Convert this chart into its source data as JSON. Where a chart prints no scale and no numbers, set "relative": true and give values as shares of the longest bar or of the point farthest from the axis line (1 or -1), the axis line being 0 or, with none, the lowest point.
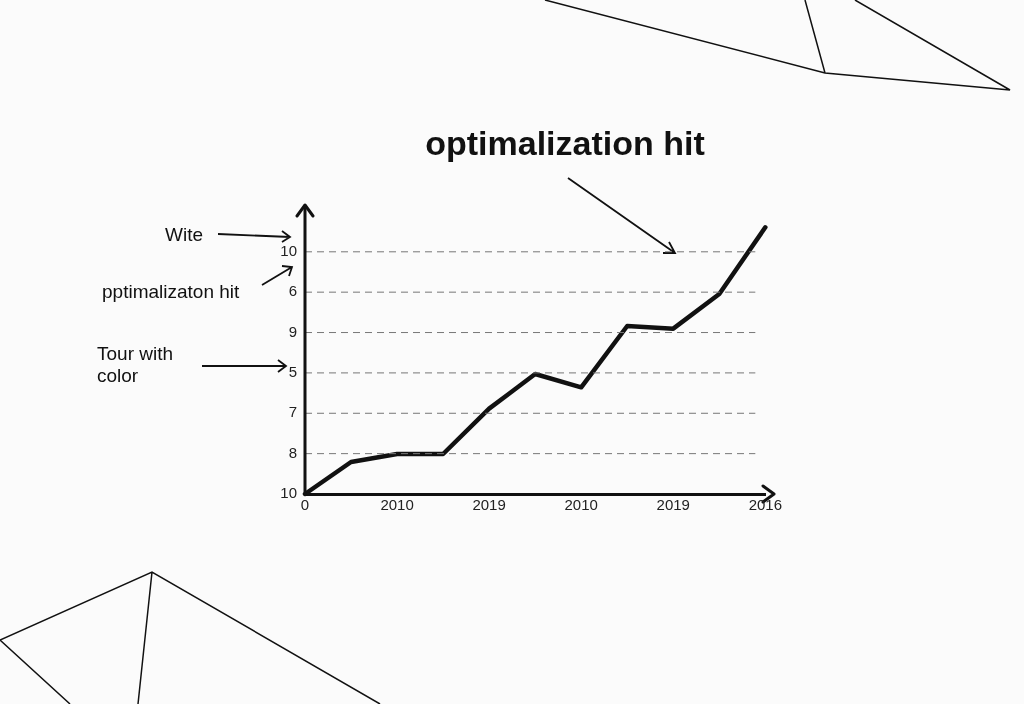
{
  "chart_data": {
    "type": "line",
    "title": "optimalization hit",
    "annotations": [
      "Wite",
      "pptimalizaton hit",
      "Tour with color",
      "10",
      "6",
      "9",
      "5",
      "7",
      "8",
      "10"
    ],
    "categories": [
      "0",
      null,
      "2010",
      null,
      "2019",
      null,
      "2010",
      null,
      "2019",
      null,
      "2016"
    ],
    "values": [
      0,
      0.12,
      0.15,
      0.15,
      0.32,
      0.45,
      0.4,
      0.63,
      0.62,
      0.75,
      1
    ],
    "color": "#111111",
    "relative": true,
    "grid": "y",
    "line_style": "solid",
    "marker": "none",
    "legend": false
  }
}
